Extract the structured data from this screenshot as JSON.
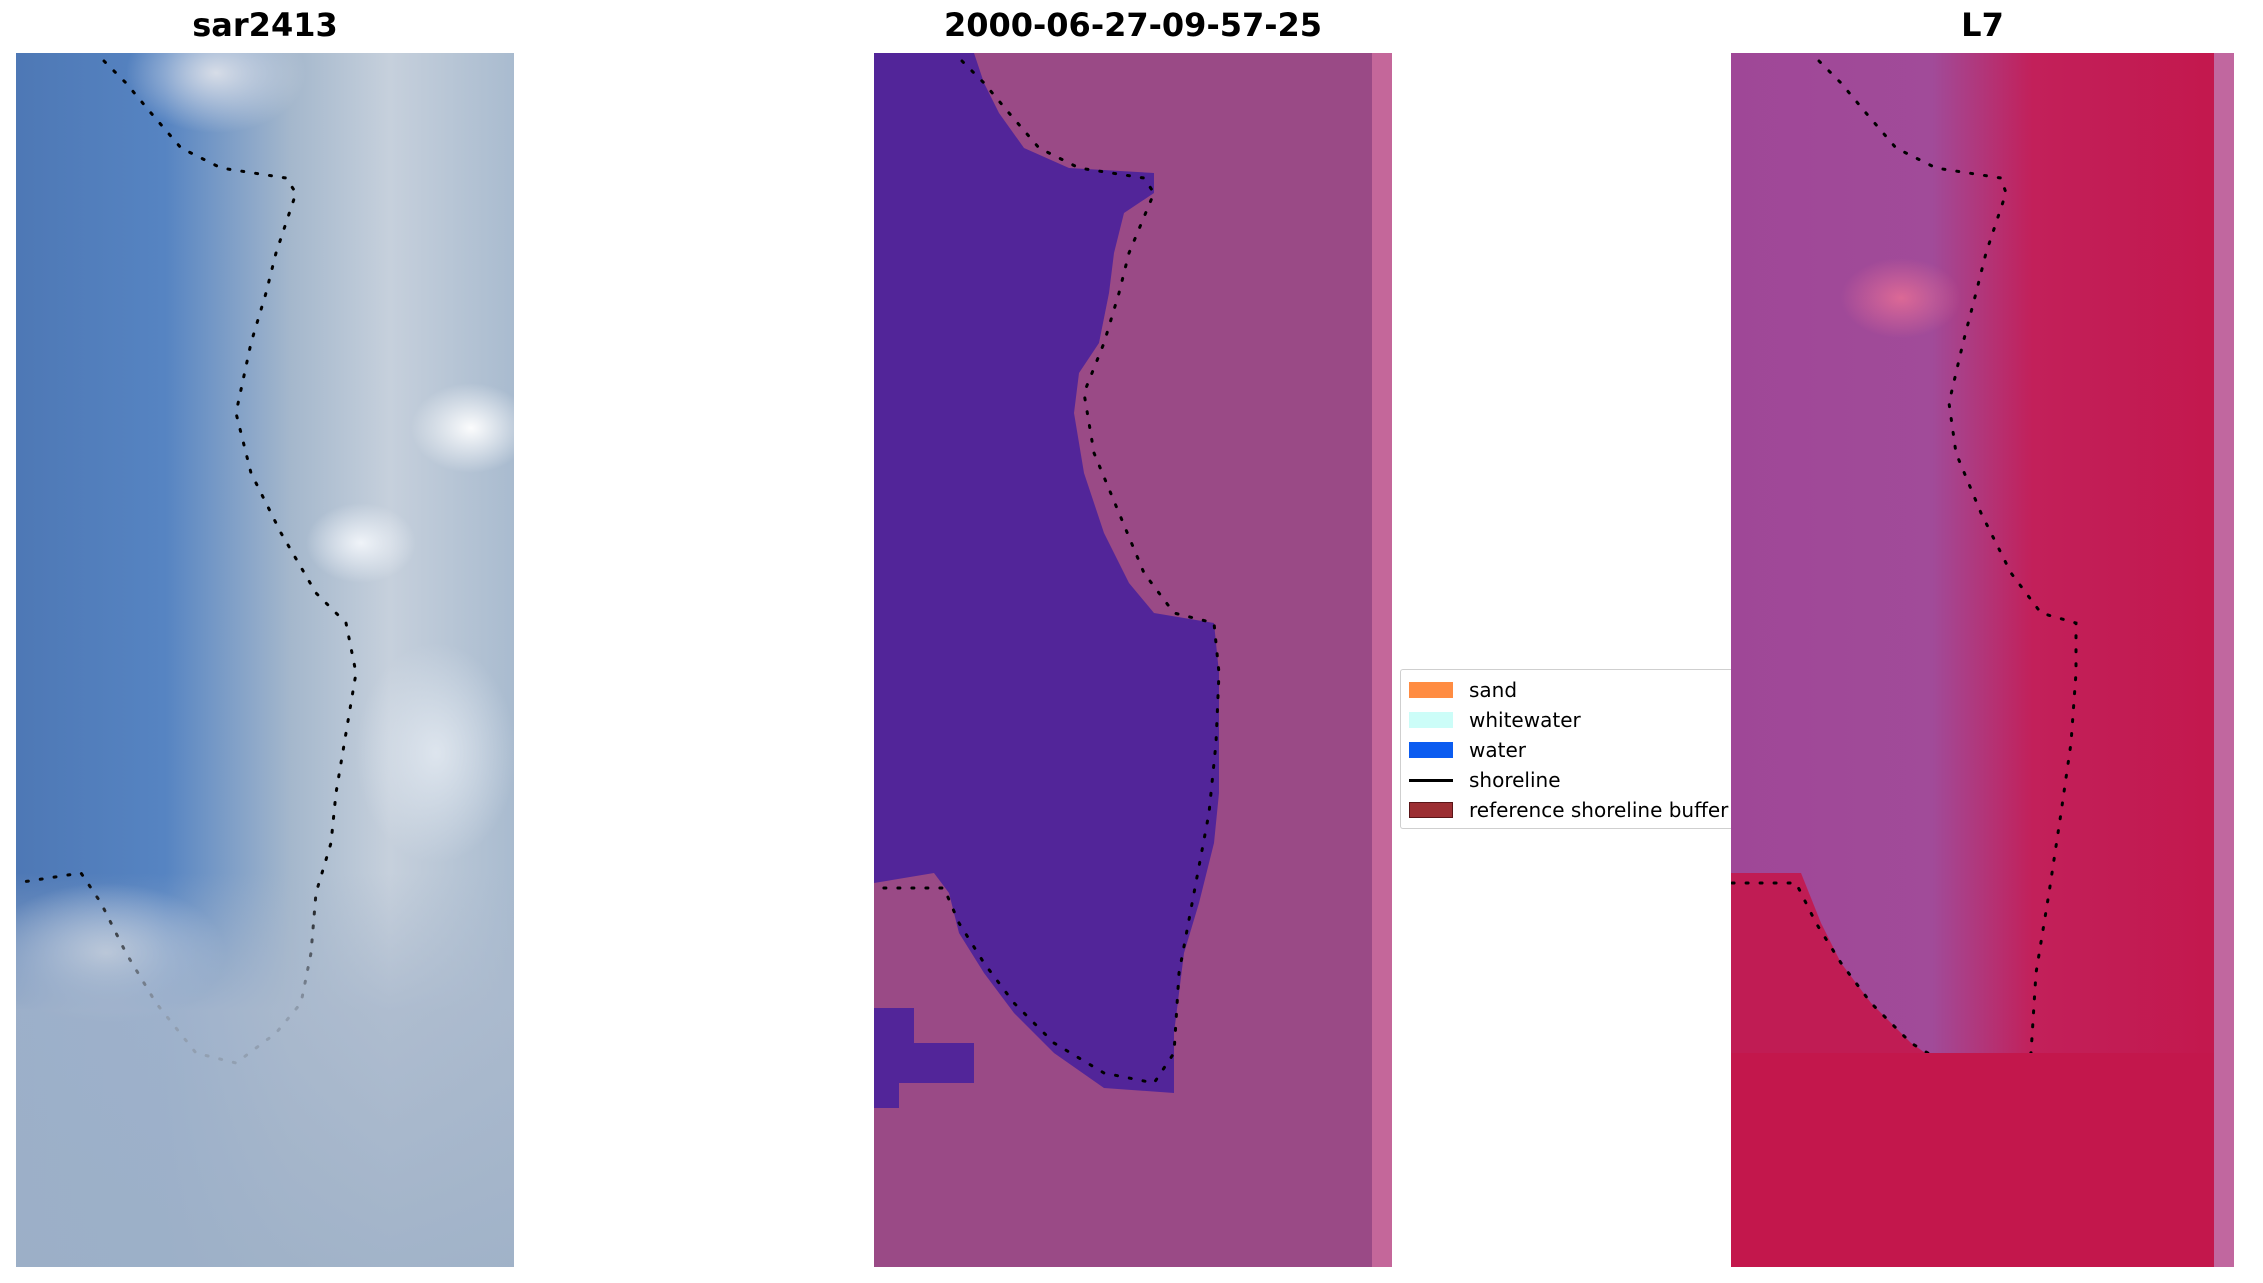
{
  "panels": [
    {
      "title": "sar2413",
      "kind": "rgb-image"
    },
    {
      "title": "2000-06-27-09-57-25",
      "kind": "classified-image"
    },
    {
      "title": "L7",
      "kind": "mndwi-image"
    }
  ],
  "legend": {
    "items": [
      {
        "label": "sand",
        "color": "#ff8c42",
        "type": "patch"
      },
      {
        "label": "whitewater",
        "color": "#ccfdf8",
        "type": "patch"
      },
      {
        "label": "water",
        "color": "#0b5cf0",
        "type": "patch"
      },
      {
        "label": "shoreline",
        "color": "#000000",
        "type": "line"
      },
      {
        "label": "reference shoreline buffer",
        "color": "#9c2f33",
        "type": "patch"
      }
    ]
  },
  "colors": {
    "water_class": "#522599",
    "shoreline": "#000000"
  }
}
